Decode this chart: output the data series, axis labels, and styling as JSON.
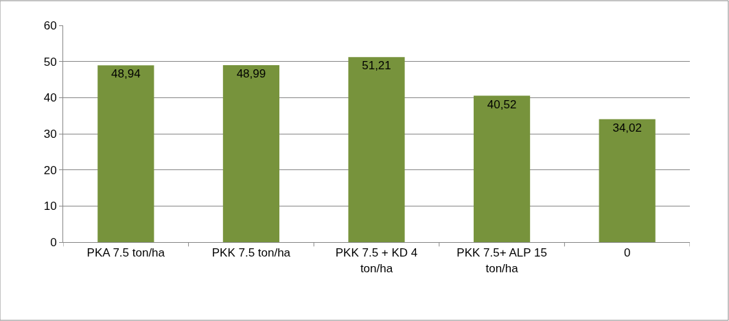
{
  "chart_data": {
    "type": "bar",
    "categories": [
      "PKA 7.5 ton/ha",
      "PKK 7.5 ton/ha",
      "PKK 7.5 + KD 4 ton/ha",
      "PKK 7.5+ ALP 15 ton/ha",
      "0"
    ],
    "values": [
      48.94,
      48.99,
      51.21,
      40.52,
      34.02
    ],
    "value_labels": [
      "48,94",
      "48,99",
      "51,21",
      "40,52",
      "34,02"
    ],
    "color": "#77933c",
    "ylim": [
      0,
      60
    ],
    "yticks": [
      0,
      10,
      20,
      30,
      40,
      50,
      60
    ],
    "grid": "y",
    "legend": false
  }
}
